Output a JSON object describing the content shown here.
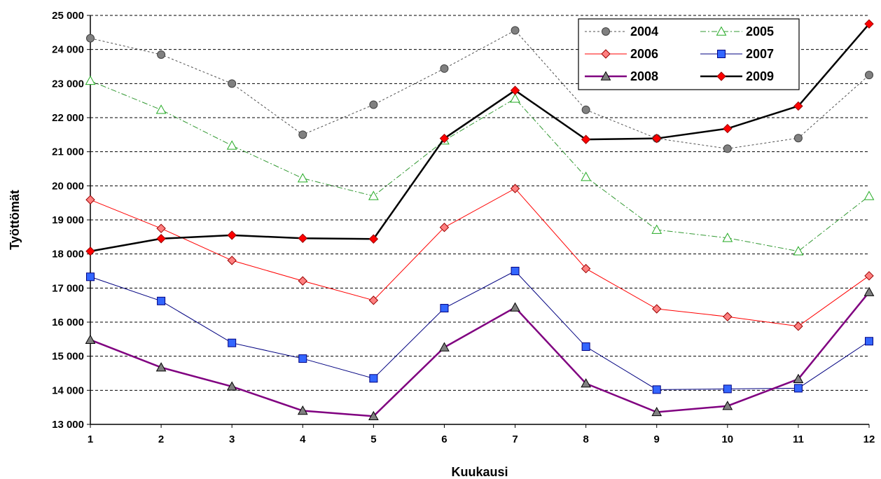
{
  "chart_data": {
    "type": "line",
    "title": "",
    "xlabel": "Kuukausi",
    "ylabel": "Työttömät",
    "x": [
      1,
      2,
      3,
      4,
      5,
      6,
      7,
      8,
      9,
      10,
      11,
      12
    ],
    "ylim": [
      13000,
      25000
    ],
    "ytick_step": 1000,
    "ytick_labels": [
      "13 000",
      "14 000",
      "15 000",
      "16 000",
      "17 000",
      "18 000",
      "19 000",
      "20 000",
      "21 000",
      "22 000",
      "23 000",
      "24 000",
      "25 000"
    ],
    "xtick_labels": [
      "1",
      "2",
      "3",
      "4",
      "5",
      "6",
      "7",
      "8",
      "9",
      "10",
      "11",
      "12"
    ],
    "grid": true,
    "legend_position": "top-right",
    "series": [
      {
        "name": "2004",
        "color": "#808080",
        "line_color": "#505050",
        "dash": "3,3",
        "marker": "circle",
        "line_width": 1,
        "values": [
          24330,
          23850,
          23000,
          21500,
          22380,
          23440,
          24560,
          22230,
          21390,
          21090,
          21400,
          23250
        ]
      },
      {
        "name": "2005",
        "color": "#66ee66",
        "line_color": "#339933",
        "dash": "8,3,2,3",
        "marker": "triangle-open",
        "line_width": 1,
        "values": [
          23080,
          22230,
          21180,
          20220,
          19700,
          21330,
          22560,
          20260,
          18710,
          18470,
          18080,
          19700
        ]
      },
      {
        "name": "2006",
        "color": "#ff8080",
        "line_color": "#ff0000",
        "dash": "",
        "marker": "diamond",
        "line_width": 1,
        "values": [
          19590,
          18750,
          17810,
          17210,
          16640,
          18780,
          19920,
          17570,
          16390,
          16160,
          15880,
          17360
        ]
      },
      {
        "name": "2007",
        "color": "#3366ff",
        "line_color": "#000080",
        "dash": "",
        "marker": "square",
        "line_width": 1,
        "values": [
          17330,
          16620,
          15390,
          14930,
          14350,
          16410,
          17500,
          15280,
          14020,
          14040,
          14060,
          15440
        ]
      },
      {
        "name": "2008",
        "color": "#808080",
        "line_color": "#800080",
        "dash": "",
        "marker": "triangle",
        "line_width": 2.5,
        "values": [
          15480,
          14670,
          14110,
          13400,
          13240,
          15260,
          16430,
          14200,
          13360,
          13540,
          14330,
          16880
        ]
      },
      {
        "name": "2009",
        "color": "#ff0000",
        "line_color": "#000000",
        "dash": "",
        "marker": "diamond",
        "line_width": 2.5,
        "values": [
          18080,
          18450,
          18550,
          18460,
          18440,
          21390,
          22800,
          21360,
          21390,
          21680,
          22340,
          24750
        ]
      }
    ]
  }
}
